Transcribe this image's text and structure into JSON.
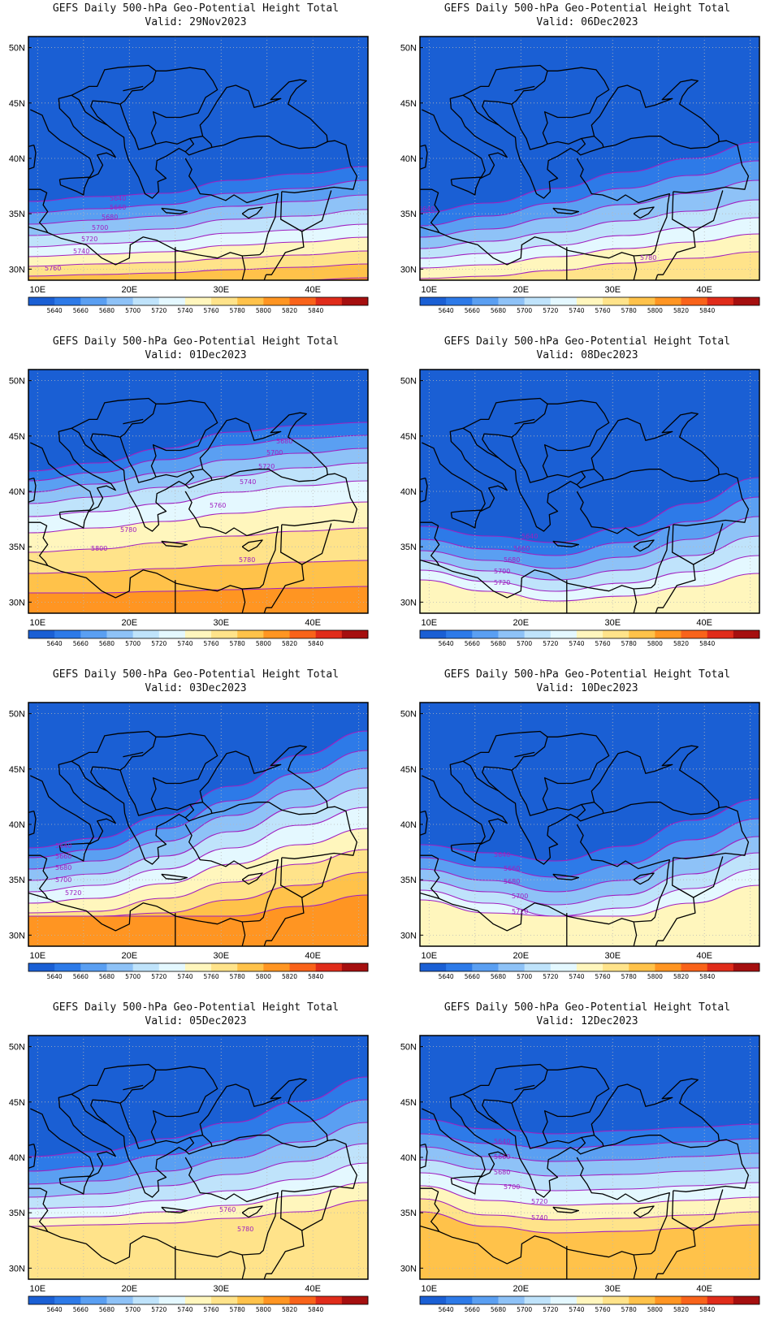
{
  "figure": {
    "title_line1": "GEFS Daily 500-hPa Geo-Potential Height Total",
    "valid_prefix": "Valid:",
    "lat_labels": [
      "50N",
      "45N",
      "40N",
      "35N",
      "30N"
    ],
    "lon_labels": [
      "10E",
      "20E",
      "30E",
      "40E"
    ],
    "colorbar": {
      "levels": [
        "5640",
        "5660",
        "5680",
        "5700",
        "5720",
        "5740",
        "5760",
        "5780",
        "5800",
        "5820",
        "5840"
      ],
      "colors": [
        "#1a5fd4",
        "#2d7ae8",
        "#5a9ff2",
        "#8ec2f7",
        "#bfe3fb",
        "#e4f8ff",
        "#fff6bd",
        "#ffe38a",
        "#ffc24a",
        "#ff9522",
        "#f9631a",
        "#e02c1a",
        "#a50f0f"
      ]
    },
    "contour_color": "#a020c0",
    "coastline_color": "#000000"
  },
  "panels": [
    {
      "valid": "29Nov2023",
      "column": "left",
      "row": 1,
      "labels": [
        "5640",
        "5660",
        "5680",
        "5700",
        "5720",
        "5740",
        "5760"
      ]
    },
    {
      "valid": "06Dec2023",
      "column": "right",
      "row": 1,
      "labels": [
        "5640",
        "5780"
      ]
    },
    {
      "valid": "01Dec2023",
      "column": "left",
      "row": 2,
      "labels": [
        "5680",
        "5700",
        "5720",
        "5740",
        "5760",
        "5780",
        "5800",
        "5780"
      ]
    },
    {
      "valid": "08Dec2023",
      "column": "right",
      "row": 2,
      "labels": [
        "5640",
        "5660",
        "5680",
        "5700",
        "5720"
      ]
    },
    {
      "valid": "03Dec2023",
      "column": "left",
      "row": 3,
      "labels": [
        "5640",
        "5660",
        "5680",
        "5700",
        "5720"
      ]
    },
    {
      "valid": "10Dec2023",
      "column": "right",
      "row": 3,
      "labels": [
        "5640",
        "5660",
        "5680",
        "5700",
        "5720"
      ]
    },
    {
      "valid": "05Dec2023",
      "column": "left",
      "row": 4,
      "labels": [
        "5760",
        "5780"
      ]
    },
    {
      "valid": "12Dec2023",
      "column": "right",
      "row": 4,
      "labels": [
        "5640",
        "5660",
        "5680",
        "5700",
        "5720",
        "5740"
      ]
    }
  ]
}
